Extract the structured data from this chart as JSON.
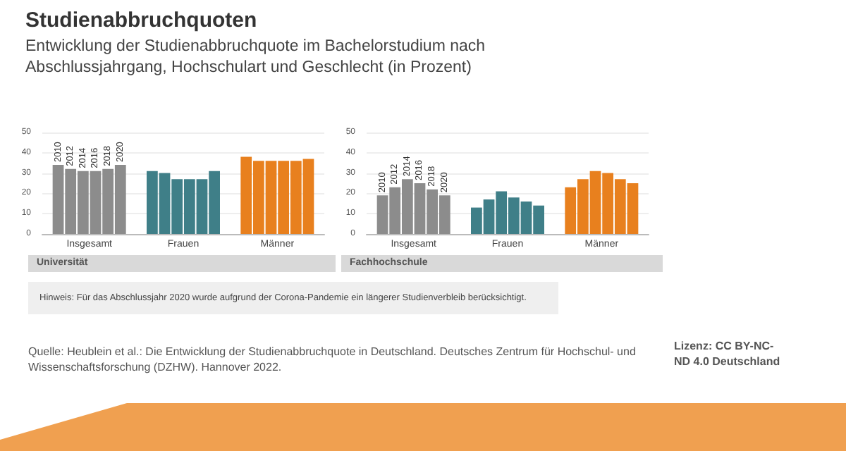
{
  "chart_data": [
    {
      "type": "bar",
      "title": "Studienabbruchquoten",
      "subtitle": "Entwicklung der Studienabbruchquote im Bachelorstudium nach Abschlussjahrgang, Hochschulart und Geschlecht (in Prozent)",
      "xlabel": "Universität",
      "categories": [
        "Insgesamt",
        "Frauen",
        "Männer"
      ],
      "series": [
        {
          "name": "2010",
          "colors": [
            "#8c8c8c",
            "#3f7f88",
            "#e8801e"
          ],
          "values": [
            34,
            31,
            38
          ]
        },
        {
          "name": "2012",
          "colors": [
            "#8c8c8c",
            "#3f7f88",
            "#e8801e"
          ],
          "values": [
            32,
            30,
            36
          ]
        },
        {
          "name": "2014",
          "colors": [
            "#8c8c8c",
            "#3f7f88",
            "#e8801e"
          ],
          "values": [
            31,
            27,
            36
          ]
        },
        {
          "name": "2016",
          "colors": [
            "#8c8c8c",
            "#3f7f88",
            "#e8801e"
          ],
          "values": [
            31,
            27,
            36
          ]
        },
        {
          "name": "2018",
          "colors": [
            "#8c8c8c",
            "#3f7f88",
            "#e8801e"
          ],
          "values": [
            32,
            27,
            36
          ]
        },
        {
          "name": "2020",
          "colors": [
            "#8c8c8c",
            "#3f7f88",
            "#e8801e"
          ],
          "values": [
            34,
            31,
            37
          ]
        }
      ],
      "ylim": [
        0,
        50
      ],
      "yticks": [
        0,
        10,
        20,
        30,
        40,
        50
      ],
      "grid": "y",
      "annotations": [
        "Hinweis: Für das Abschlussjahr 2020 wurde aufgrund der Corona-Pandemie ein längerer Studienverbleib berücksichtigt.",
        "Quelle: Heublein et al.: Die Entwicklung der Studienabbruchquote in Deutschland. Deutsches Zentrum für Hochschul- und Wissenschaftsforschung (DZHW). Hannover 2022.",
        "Lizenz: CC BY-NC-ND 4.0 Deutschland"
      ]
    },
    {
      "type": "bar",
      "xlabel": "Fachhochschule",
      "categories": [
        "Insgesamt",
        "Frauen",
        "Männer"
      ],
      "series": [
        {
          "name": "2010",
          "colors": [
            "#8c8c8c",
            "#3f7f88",
            "#e8801e"
          ],
          "values": [
            19,
            13,
            23
          ]
        },
        {
          "name": "2012",
          "colors": [
            "#8c8c8c",
            "#3f7f88",
            "#e8801e"
          ],
          "values": [
            23,
            17,
            27
          ]
        },
        {
          "name": "2014",
          "colors": [
            "#8c8c8c",
            "#3f7f88",
            "#e8801e"
          ],
          "values": [
            27,
            21,
            31
          ]
        },
        {
          "name": "2016",
          "colors": [
            "#8c8c8c",
            "#3f7f88",
            "#e8801e"
          ],
          "values": [
            25,
            18,
            30
          ]
        },
        {
          "name": "2018",
          "colors": [
            "#8c8c8c",
            "#3f7f88",
            "#e8801e"
          ],
          "values": [
            22,
            16,
            27
          ]
        },
        {
          "name": "2020",
          "colors": [
            "#8c8c8c",
            "#3f7f88",
            "#e8801e"
          ],
          "values": [
            19,
            14,
            25
          ]
        }
      ],
      "ylim": [
        0,
        50
      ],
      "yticks": [
        0,
        10,
        20,
        30,
        40,
        50
      ],
      "grid": "y"
    }
  ]
}
